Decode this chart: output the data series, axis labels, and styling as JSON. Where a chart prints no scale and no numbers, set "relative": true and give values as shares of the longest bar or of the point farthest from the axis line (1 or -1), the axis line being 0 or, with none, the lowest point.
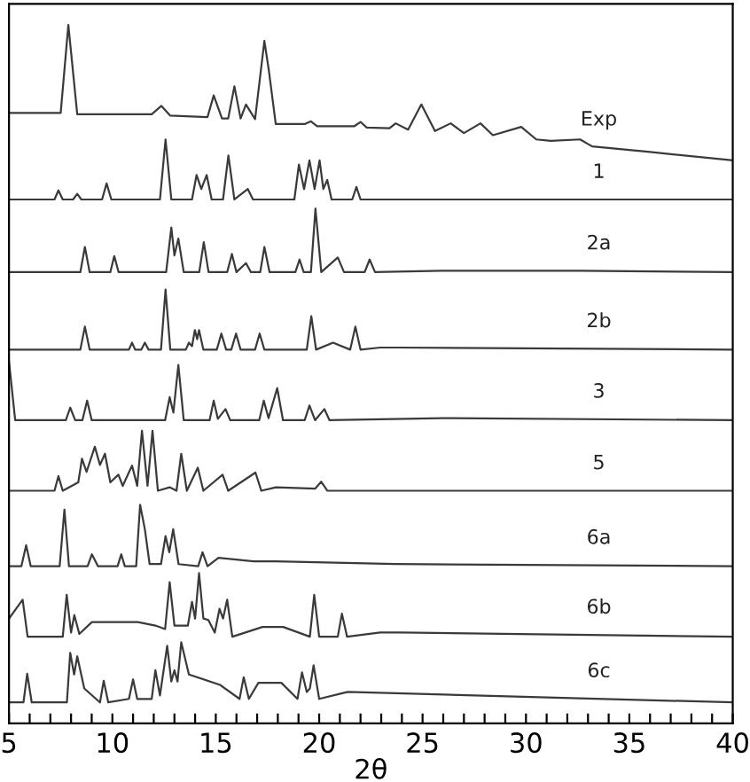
{
  "chart_data": {
    "type": "line",
    "relative": true,
    "xlabel": "2θ",
    "xlim": [
      5,
      40
    ],
    "xticks": [
      5,
      {
        "value": 6,
        "label": null
      },
      {
        "value": 7,
        "label": null
      },
      {
        "value": 8,
        "label": null
      },
      {
        "value": 9,
        "label": null
      },
      10,
      {
        "value": 11,
        "label": null
      },
      {
        "value": 12,
        "label": null
      },
      {
        "value": 13,
        "label": null
      },
      {
        "value": 14,
        "label": null
      },
      15,
      {
        "value": 16,
        "label": null
      },
      {
        "value": 17,
        "label": null
      },
      {
        "value": 18,
        "label": null
      },
      {
        "value": 19,
        "label": null
      },
      20,
      {
        "value": 21,
        "label": null
      },
      {
        "value": 22,
        "label": null
      },
      {
        "value": 23,
        "label": null
      },
      {
        "value": 24,
        "label": null
      },
      25,
      {
        "value": 26,
        "label": null
      },
      {
        "value": 27,
        "label": null
      },
      {
        "value": 28,
        "label": null
      },
      {
        "value": 29,
        "label": null
      },
      30,
      {
        "value": 31,
        "label": null
      },
      {
        "value": 32,
        "label": null
      },
      {
        "value": 33,
        "label": null
      },
      {
        "value": 34,
        "label": null
      },
      35,
      {
        "value": 36,
        "label": null
      },
      {
        "value": 37,
        "label": null
      },
      {
        "value": 38,
        "label": null
      },
      {
        "value": 39,
        "label": null
      },
      40
    ],
    "tick_labels": "x",
    "grid": false,
    "legend": false,
    "marker": "none",
    "line_style": "solid",
    "series": [
      {
        "name": "Exp",
        "color": "#3a3a3a",
        "x": [
          5,
          7.5,
          7.87,
          8.3,
          11.9,
          12.37,
          12.8,
          14.6,
          14.9,
          15.3,
          15.6,
          15.9,
          16.2,
          16.46,
          16.9,
          17.35,
          17.57,
          17.9,
          19.3,
          19.6,
          19.9,
          21.7,
          22.0,
          22.3,
          23.4,
          23.7,
          24.3,
          24.94,
          25.6,
          26.36,
          27.0,
          27.8,
          28.4,
          29.77,
          30.5,
          31.2,
          32.62,
          33.2,
          36,
          40
        ],
        "values": [
          0.874,
          0.874,
          1.0,
          0.872,
          0.872,
          0.884,
          0.87,
          0.868,
          0.899,
          0.866,
          0.866,
          0.912,
          0.866,
          0.886,
          0.865,
          0.977,
          0.934,
          0.858,
          0.858,
          0.862,
          0.855,
          0.855,
          0.861,
          0.853,
          0.852,
          0.859,
          0.85,
          0.886,
          0.848,
          0.859,
          0.845,
          0.859,
          0.842,
          0.854,
          0.836,
          0.834,
          0.836,
          0.826,
          0.818,
          0.806
        ]
      },
      {
        "name": "1",
        "color": "#3a3a3a",
        "x": [
          5,
          7.2,
          7.39,
          7.6,
          8.1,
          8.3,
          8.5,
          9.5,
          9.72,
          9.95,
          12.3,
          12.57,
          12.85,
          13.85,
          14.07,
          14.3,
          14.56,
          14.8,
          15.35,
          15.61,
          15.9,
          16.55,
          16.8,
          18.8,
          19.02,
          19.27,
          19.53,
          19.78,
          20.02,
          20.2,
          20.39,
          20.6,
          21.6,
          21.8,
          22.0,
          40
        ],
        "values": [
          0.75,
          0.75,
          0.763,
          0.75,
          0.75,
          0.758,
          0.75,
          0.75,
          0.773,
          0.75,
          0.75,
          0.836,
          0.75,
          0.75,
          0.785,
          0.765,
          0.785,
          0.75,
          0.75,
          0.813,
          0.75,
          0.765,
          0.75,
          0.75,
          0.8,
          0.765,
          0.806,
          0.765,
          0.806,
          0.765,
          0.778,
          0.75,
          0.75,
          0.768,
          0.75,
          0.75
        ]
      },
      {
        "name": "2a",
        "color": "#3a3a3a",
        "x": [
          5,
          8.45,
          8.67,
          8.9,
          9.9,
          10.09,
          10.3,
          12.6,
          12.85,
          13.0,
          13.19,
          13.45,
          14.2,
          14.42,
          14.65,
          15.55,
          15.78,
          16.0,
          16.46,
          16.7,
          17.15,
          17.35,
          17.6,
          18.85,
          19.05,
          19.25,
          19.6,
          19.82,
          20.1,
          20.9,
          21.2,
          22.2,
          22.44,
          22.7,
          25.9,
          30.6,
          32.6,
          40
        ],
        "values": [
          0.646,
          0.646,
          0.682,
          0.646,
          0.646,
          0.669,
          0.646,
          0.646,
          0.71,
          0.67,
          0.694,
          0.646,
          0.646,
          0.689,
          0.646,
          0.646,
          0.672,
          0.646,
          0.659,
          0.646,
          0.646,
          0.682,
          0.646,
          0.646,
          0.664,
          0.646,
          0.646,
          0.737,
          0.646,
          0.667,
          0.646,
          0.646,
          0.664,
          0.646,
          0.648,
          0.648,
          0.648,
          0.646
        ]
      },
      {
        "name": "2b",
        "color": "#3a3a3a",
        "x": [
          5,
          8.45,
          8.67,
          8.9,
          10.8,
          10.95,
          11.1,
          11.4,
          11.57,
          11.75,
          12.35,
          12.57,
          12.8,
          13.55,
          13.7,
          13.85,
          13.99,
          14.1,
          14.19,
          14.4,
          15.05,
          15.27,
          15.5,
          15.75,
          15.98,
          16.2,
          16.9,
          17.12,
          17.35,
          19.4,
          19.62,
          19.85,
          20.67,
          21.5,
          21.75,
          22.0,
          22.95,
          23.8,
          40
        ],
        "values": [
          0.535,
          0.535,
          0.568,
          0.535,
          0.535,
          0.545,
          0.535,
          0.535,
          0.545,
          0.535,
          0.535,
          0.621,
          0.535,
          0.535,
          0.545,
          0.54,
          0.563,
          0.55,
          0.563,
          0.535,
          0.535,
          0.558,
          0.535,
          0.535,
          0.558,
          0.535,
          0.535,
          0.558,
          0.535,
          0.535,
          0.583,
          0.535,
          0.545,
          0.535,
          0.568,
          0.535,
          0.538,
          0.538,
          0.535
        ]
      },
      {
        "name": "3",
        "color": "#3a3a3a",
        "x": [
          5,
          5.3,
          7.75,
          7.96,
          8.2,
          8.55,
          8.78,
          9.0,
          12.55,
          12.77,
          12.95,
          13.19,
          13.45,
          14.7,
          14.9,
          15.1,
          15.47,
          15.7,
          17.1,
          17.32,
          17.55,
          17.97,
          18.25,
          19.3,
          19.53,
          19.8,
          20.25,
          20.5,
          26,
          40
        ],
        "values": [
          0.518,
          0.434,
          0.434,
          0.452,
          0.434,
          0.434,
          0.462,
          0.434,
          0.434,
          0.467,
          0.445,
          0.513,
          0.434,
          0.434,
          0.462,
          0.436,
          0.45,
          0.434,
          0.434,
          0.462,
          0.437,
          0.48,
          0.434,
          0.434,
          0.455,
          0.434,
          0.45,
          0.434,
          0.437,
          0.434
        ]
      },
      {
        "name": "5",
        "color": "#3a3a3a",
        "x": [
          5,
          7.2,
          7.39,
          7.6,
          8.35,
          8.53,
          8.75,
          9.15,
          9.4,
          9.64,
          9.9,
          10.29,
          10.5,
          10.95,
          11.2,
          11.43,
          11.7,
          11.94,
          12.2,
          12.77,
          13.1,
          13.33,
          13.6,
          14.13,
          14.4,
          15.33,
          15.6,
          16.92,
          17.2,
          17.91,
          19.8,
          20.1,
          20.4,
          40
        ],
        "values": [
          0.333,
          0.333,
          0.354,
          0.333,
          0.345,
          0.379,
          0.36,
          0.396,
          0.37,
          0.386,
          0.345,
          0.356,
          0.34,
          0.369,
          0.34,
          0.419,
          0.34,
          0.419,
          0.333,
          0.338,
          0.333,
          0.386,
          0.333,
          0.366,
          0.333,
          0.356,
          0.333,
          0.359,
          0.333,
          0.338,
          0.336,
          0.346,
          0.333,
          0.333
        ]
      },
      {
        "name": "6a",
        "color": "#3a3a3a",
        "x": [
          5,
          5.6,
          5.83,
          6.05,
          7.45,
          7.68,
          7.9,
          8.8,
          9.01,
          9.3,
          10.25,
          10.43,
          10.6,
          11.15,
          11.34,
          11.57,
          11.8,
          12.35,
          12.57,
          12.75,
          12.94,
          13.2,
          14.15,
          14.36,
          14.6,
          15.13,
          16.83,
          17.91,
          23.66,
          40
        ],
        "values": [
          0.225,
          0.225,
          0.255,
          0.225,
          0.225,
          0.306,
          0.225,
          0.225,
          0.242,
          0.225,
          0.225,
          0.242,
          0.225,
          0.225,
          0.313,
          0.278,
          0.228,
          0.228,
          0.268,
          0.245,
          0.278,
          0.228,
          0.225,
          0.245,
          0.225,
          0.237,
          0.232,
          0.232,
          0.228,
          0.225
        ]
      },
      {
        "name": "6b",
        "color": "#3a3a3a",
        "x": [
          5,
          5.66,
          5.9,
          7.6,
          7.79,
          8.0,
          8.16,
          8.4,
          9.01,
          10.06,
          11.23,
          12.08,
          12.55,
          12.77,
          13.0,
          13.65,
          13.85,
          14.0,
          14.19,
          14.4,
          14.64,
          14.95,
          15.18,
          15.35,
          15.55,
          15.8,
          17.26,
          18.26,
          19.55,
          19.76,
          20.0,
          20.9,
          21.1,
          21.35,
          22.95,
          23.94,
          40
        ],
        "values": [
          0.15,
          0.177,
          0.124,
          0.124,
          0.184,
          0.13,
          0.155,
          0.128,
          0.145,
          0.145,
          0.145,
          0.14,
          0.135,
          0.202,
          0.14,
          0.14,
          0.174,
          0.15,
          0.215,
          0.15,
          0.148,
          0.13,
          0.164,
          0.15,
          0.177,
          0.124,
          0.138,
          0.138,
          0.124,
          0.184,
          0.124,
          0.124,
          0.157,
          0.124,
          0.13,
          0.13,
          0.124
        ]
      },
      {
        "name": "6c",
        "color": "#3a3a3a",
        "x": [
          5,
          5.7,
          5.88,
          6.1,
          7.8,
          7.96,
          8.15,
          8.3,
          8.64,
          9.4,
          9.58,
          9.8,
          10.8,
          11.0,
          11.2,
          11.9,
          12.08,
          12.3,
          12.65,
          12.85,
          13.0,
          13.15,
          13.33,
          13.7,
          15.21,
          16.15,
          16.35,
          16.6,
          17.06,
          17.83,
          18.17,
          18.95,
          19.17,
          19.4,
          19.55,
          19.73,
          20.0,
          21.38,
          40
        ],
        "values": [
          0.03,
          0.03,
          0.071,
          0.03,
          0.03,
          0.101,
          0.07,
          0.096,
          0.05,
          0.03,
          0.061,
          0.03,
          0.035,
          0.063,
          0.035,
          0.035,
          0.076,
          0.04,
          0.111,
          0.06,
          0.076,
          0.06,
          0.116,
          0.07,
          0.055,
          0.035,
          0.066,
          0.035,
          0.058,
          0.058,
          0.058,
          0.035,
          0.073,
          0.045,
          0.05,
          0.083,
          0.035,
          0.045,
          0.03
        ]
      }
    ]
  }
}
